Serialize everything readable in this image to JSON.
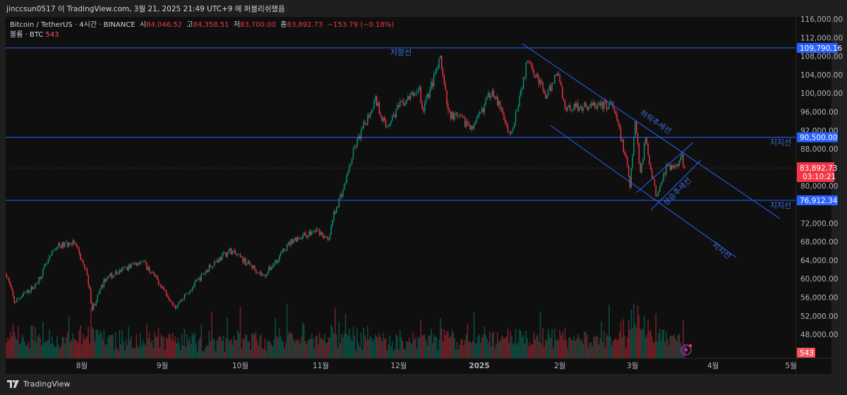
{
  "header": {
    "published": "jinccsun0517 이 TradingView.com, 3월 21, 2025 21:49 UTC+9 에 퍼블리쉬했음"
  },
  "legend": {
    "symbol": "Bitcoin / TetherUS · 4시간 · BINANCE",
    "open_label": "시",
    "open": "84,046.52",
    "high_label": "고",
    "high": "84,358.51",
    "low_label": "저",
    "low": "83,700.00",
    "close_label": "종",
    "close": "83,892.73",
    "change": "−153.79 (−0.18%)",
    "volume_label": "볼륨 · BTC",
    "volume": "543"
  },
  "colors": {
    "up": "#089981",
    "down": "#f23645",
    "drawing": "#2962ff",
    "background": "#0f0f0f"
  },
  "chart_data": {
    "type": "candlestick",
    "timeframe": "4시간",
    "price_axis": {
      "ticks": [
        "116,000.00",
        "112,000.00",
        "108,000.00",
        "104,000.00",
        "100,000.00",
        "96,000.00",
        "92,000.00",
        "88,000.00",
        "80,000.00",
        "72,000.00",
        "68,000.00",
        "64,000.00",
        "60,000.00",
        "56,000.00",
        "52,000.00",
        "48,000.00"
      ],
      "range": [
        44000,
        116000
      ]
    },
    "time_axis": {
      "ticks": [
        {
          "label": "8월",
          "date": "2024-08-01"
        },
        {
          "label": "9월",
          "date": "2024-09-01"
        },
        {
          "label": "10월",
          "date": "2024-10-01"
        },
        {
          "label": "11월",
          "date": "2024-11-01"
        },
        {
          "label": "12월",
          "date": "2024-12-01"
        },
        {
          "label": "2025",
          "date": "2025-01-01"
        },
        {
          "label": "2월",
          "date": "2025-02-01"
        },
        {
          "label": "3월",
          "date": "2025-03-01"
        },
        {
          "label": "4월",
          "date": "2025-04-01"
        },
        {
          "label": "5월",
          "date": "2025-05-01"
        }
      ]
    },
    "price_path": [
      [
        "2024-07-03",
        61000
      ],
      [
        "2024-07-06",
        55000
      ],
      [
        "2024-07-14",
        58500
      ],
      [
        "2024-07-22",
        66900
      ],
      [
        "2024-07-29",
        67800
      ],
      [
        "2024-08-03",
        61000
      ],
      [
        "2024-08-05",
        53500
      ],
      [
        "2024-08-10",
        60000
      ],
      [
        "2024-08-24",
        64000
      ],
      [
        "2024-08-31",
        59000
      ],
      [
        "2024-09-06",
        54000
      ],
      [
        "2024-09-20",
        63100
      ],
      [
        "2024-09-27",
        66100
      ],
      [
        "2024-10-07",
        62000
      ],
      [
        "2024-10-10",
        60500
      ],
      [
        "2024-10-21",
        68400
      ],
      [
        "2024-10-31",
        70500
      ],
      [
        "2024-11-04",
        68000
      ],
      [
        "2024-11-06",
        74000
      ],
      [
        "2024-11-10",
        80000
      ],
      [
        "2024-11-14",
        88200
      ],
      [
        "2024-11-22",
        98800
      ],
      [
        "2024-11-26",
        92700
      ],
      [
        "2024-12-01",
        97000
      ],
      [
        "2024-12-09",
        101000
      ],
      [
        "2024-12-10",
        96000
      ],
      [
        "2024-12-17",
        107200
      ],
      [
        "2024-12-20",
        95800
      ],
      [
        "2024-12-30",
        92700
      ],
      [
        "2025-01-06",
        101000
      ],
      [
        "2025-01-13",
        91000
      ],
      [
        "2025-01-20",
        108000
      ],
      [
        "2025-01-22",
        105000
      ],
      [
        "2025-01-27",
        99000
      ],
      [
        "2025-01-31",
        105000
      ],
      [
        "2025-02-03",
        97000
      ],
      [
        "2025-02-21",
        97500
      ],
      [
        "2025-02-24",
        92000
      ],
      [
        "2025-02-27",
        84000
      ],
      [
        "2025-02-28",
        79500
      ],
      [
        "2025-03-02",
        94000
      ],
      [
        "2025-03-04",
        83000
      ],
      [
        "2025-03-06",
        90000
      ],
      [
        "2025-03-10",
        78000
      ],
      [
        "2025-03-14",
        84000
      ],
      [
        "2025-03-17",
        84000
      ],
      [
        "2025-03-20",
        86500
      ],
      [
        "2025-03-21",
        83892.73
      ]
    ],
    "horizontal_levels": [
      {
        "price": 109790.16,
        "label": "109,790.16",
        "annotation": "저항선"
      },
      {
        "price": 90500.0,
        "label": "90,500.00",
        "annotation": "지지선"
      },
      {
        "price": 76912.34,
        "label": "76,912.34",
        "annotation": "지지선"
      }
    ],
    "trendline_labels": {
      "down_trend": "하락추세선",
      "up_trend": "상승추세선",
      "lower_support": "지지선"
    },
    "last_price": {
      "price": "83,892.73",
      "countdown": "03:10:21"
    },
    "last_volume": "543"
  },
  "footer": {
    "brand": "TradingView"
  }
}
